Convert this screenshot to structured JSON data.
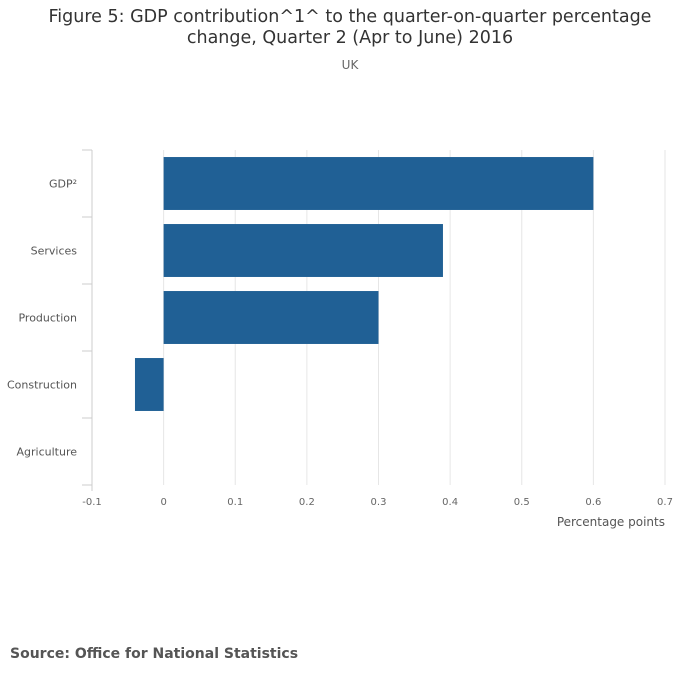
{
  "chart_data": {
    "type": "bar",
    "orientation": "horizontal",
    "title": "Figure 5: GDP contribution^1^ to the quarter-on-quarter percentage change, Quarter 2 (Apr to June) 2016",
    "subtitle": "UK",
    "categories": [
      "GDP²",
      "Services",
      "Production",
      "Construction",
      "Agriculture"
    ],
    "values": [
      0.6,
      0.39,
      0.3,
      -0.04,
      0
    ],
    "xlabel": "Percentage points",
    "ylabel": "",
    "xlim": [
      -0.1,
      0.7
    ],
    "xticks": [
      "-0.1",
      "0",
      "0.1",
      "0.2",
      "0.3",
      "0.4",
      "0.5",
      "0.6",
      "0.7"
    ],
    "grid": true,
    "bar_color": "#206095"
  },
  "source": "Source: Office for National Statistics"
}
